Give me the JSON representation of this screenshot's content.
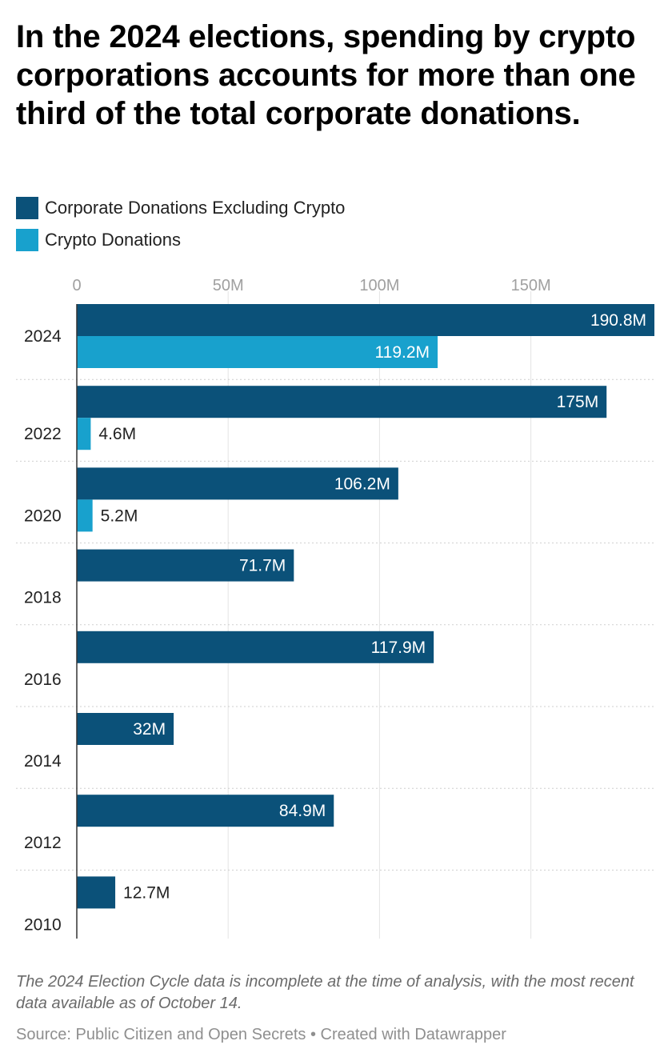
{
  "title": "In the 2024 elections, spending by crypto corporations accounts for more than one third of the total corporate donations.",
  "legend": [
    {
      "label": "Corporate Donations Excluding Crypto",
      "color": "#0b5179"
    },
    {
      "label": "Crypto Donations",
      "color": "#18a1cd"
    }
  ],
  "chart_data": {
    "type": "bar",
    "orientation": "horizontal",
    "title": "In the 2024 elections, spending by crypto corporations accounts for more than one third of the total corporate donations.",
    "xlabel": "",
    "ylabel": "",
    "xlim": [
      0,
      190.8
    ],
    "x_ticks": [
      0,
      50,
      100,
      150
    ],
    "x_tick_labels": [
      "0",
      "50M",
      "100M",
      "150M"
    ],
    "grid": true,
    "legend_position": "top-left",
    "categories": [
      "2024",
      "2022",
      "2020",
      "2018",
      "2016",
      "2014",
      "2012",
      "2010"
    ],
    "series": [
      {
        "name": "Corporate Donations Excluding Crypto",
        "color": "#0b5179",
        "values": [
          190.8,
          175,
          106.2,
          71.7,
          117.9,
          32,
          84.9,
          12.7
        ],
        "labels": [
          "190.8M",
          "175M",
          "106.2M",
          "71.7M",
          "117.9M",
          "32M",
          "84.9M",
          "12.7M"
        ]
      },
      {
        "name": "Crypto Donations",
        "color": "#18a1cd",
        "values": [
          119.2,
          4.6,
          5.2,
          null,
          null,
          null,
          null,
          null
        ],
        "labels": [
          "119.2M",
          "4.6M",
          "5.2M",
          null,
          null,
          null,
          null,
          null
        ]
      }
    ]
  },
  "note": "The 2024 Election Cycle data is incomplete at the time of analysis, with the most recent data available as of October 14.",
  "source": "Source: Public Citizen and Open Secrets • Created with Datawrapper"
}
